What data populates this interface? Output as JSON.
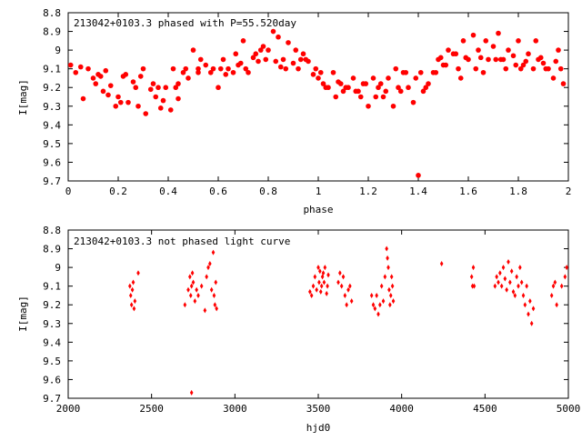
{
  "chart_data": [
    {
      "type": "scatter",
      "title": "213042+0103.3 phased with P=55.520day",
      "xlabel": "phase",
      "ylabel": "I[mag]",
      "xlim": [
        0,
        2
      ],
      "ylim": [
        9.7,
        8.8
      ],
      "y_inverted": true,
      "xticks": [
        "0",
        "0.2",
        "0.4",
        "0.6",
        "0.8",
        "1",
        "1.2",
        "1.4",
        "1.6",
        "1.8",
        "2"
      ],
      "yticks": [
        "8.8",
        "8.9",
        "9",
        "9.1",
        "9.2",
        "9.3",
        "9.4",
        "9.5",
        "9.6",
        "9.7"
      ],
      "grid": false,
      "marker_color": "#ff0000",
      "x": [
        0.01,
        0.03,
        0.06,
        0.08,
        0.1,
        0.12,
        0.14,
        0.15,
        0.17,
        0.19,
        0.2,
        0.22,
        0.24,
        0.26,
        0.28,
        0.3,
        0.31,
        0.33,
        0.35,
        0.37,
        0.39,
        0.41,
        0.42,
        0.44,
        0.46,
        0.48,
        0.5,
        0.52,
        0.55,
        0.57,
        0.6,
        0.62,
        0.64,
        0.66,
        0.68,
        0.7,
        0.72,
        0.74,
        0.76,
        0.78,
        0.8,
        0.82,
        0.84,
        0.86,
        0.88,
        0.9,
        0.92,
        0.94,
        0.96,
        0.98,
        1.0,
        1.02,
        1.04,
        1.06,
        1.08,
        1.1,
        1.12,
        1.14,
        1.16,
        1.18,
        1.2,
        1.22,
        1.24,
        1.26,
        1.28,
        1.3,
        1.32,
        1.34,
        1.36,
        1.38,
        1.4,
        1.42,
        1.44,
        1.46,
        1.48,
        1.5,
        1.52,
        1.54,
        1.56,
        1.58,
        1.6,
        1.62,
        1.64,
        1.66,
        1.68,
        1.7,
        1.72,
        1.74,
        1.76,
        1.78,
        1.8,
        1.82,
        1.84,
        1.86,
        1.88,
        1.9,
        1.92,
        1.94,
        1.96,
        1.98,
        0.05,
        0.11,
        0.16,
        0.23,
        0.27,
        0.34,
        0.38,
        0.43,
        0.47,
        0.53,
        0.58,
        0.63,
        0.67,
        0.71,
        0.75,
        0.79,
        0.83,
        0.87,
        0.91,
        0.95,
        0.99,
        1.03,
        1.07,
        1.11,
        1.15,
        1.19,
        1.23,
        1.27,
        1.31,
        1.35,
        1.39,
        1.43,
        1.47,
        1.51,
        1.55,
        1.59,
        1.63,
        1.67,
        1.71,
        1.75,
        1.79,
        1.83,
        1.87,
        1.91,
        1.95,
        0.13,
        0.21,
        0.29,
        0.36,
        0.44,
        0.52,
        0.61,
        0.69,
        0.77,
        0.85,
        0.93,
        1.01,
        1.09,
        1.17,
        1.25,
        1.33,
        1.41,
        1.49,
        1.57,
        1.65,
        1.73,
        1.81,
        1.89,
        1.97
      ],
      "y": [
        9.08,
        9.12,
        9.26,
        9.1,
        9.15,
        9.13,
        9.22,
        9.11,
        9.19,
        9.3,
        9.25,
        9.14,
        9.28,
        9.17,
        9.3,
        9.1,
        9.34,
        9.21,
        9.25,
        9.31,
        9.2,
        9.32,
        9.1,
        9.26,
        9.12,
        9.15,
        9.0,
        9.1,
        9.08,
        9.12,
        9.2,
        9.05,
        9.1,
        9.12,
        9.08,
        8.95,
        9.12,
        9.04,
        9.06,
        8.98,
        9.0,
        8.9,
        8.93,
        9.05,
        8.96,
        9.07,
        9.1,
        9.02,
        9.06,
        9.13,
        9.15,
        9.18,
        9.2,
        9.12,
        9.17,
        9.22,
        9.2,
        9.15,
        9.22,
        9.18,
        9.3,
        9.15,
        9.2,
        9.25,
        9.15,
        9.3,
        9.2,
        9.12,
        9.2,
        9.28,
        9.67,
        9.22,
        9.18,
        9.12,
        9.05,
        9.08,
        9.0,
        9.02,
        9.1,
        8.95,
        9.05,
        8.92,
        9.0,
        9.12,
        9.05,
        8.98,
        8.91,
        9.05,
        9.0,
        9.03,
        8.95,
        9.08,
        9.02,
        9.1,
        9.05,
        9.07,
        9.1,
        9.15,
        9.0,
        9.18,
        9.09,
        9.18,
        9.24,
        9.13,
        9.2,
        9.18,
        9.27,
        9.2,
        9.1,
        9.05,
        9.1,
        9.13,
        9.02,
        9.1,
        9.02,
        9.05,
        9.06,
        9.1,
        9.0,
        9.05,
        9.1,
        9.2,
        9.25,
        9.2,
        9.22,
        9.18,
        9.25,
        9.22,
        9.1,
        9.12,
        9.15,
        9.2,
        9.12,
        9.08,
        9.02,
        9.04,
        9.1,
        8.95,
        9.05,
        9.1,
        9.08,
        9.06,
        8.95,
        9.1,
        9.06,
        9.14,
        9.28,
        9.14,
        9.2,
        9.18,
        9.12,
        9.1,
        9.07,
        9.0,
        9.09,
        9.05,
        9.12,
        9.18,
        9.25,
        9.18,
        9.22,
        9.12,
        9.04,
        9.15,
        9.04,
        9.05,
        9.1,
        9.04,
        9.1
      ]
    },
    {
      "type": "scatter",
      "title": "213042+0103.3 not phased light curve",
      "xlabel": "hjd0",
      "ylabel": "I[mag]",
      "xlim": [
        2000,
        5000
      ],
      "ylim": [
        9.7,
        8.8
      ],
      "y_inverted": true,
      "xticks": [
        "2000",
        "2500",
        "3000",
        "3500",
        "4000",
        "4500",
        "5000"
      ],
      "yticks": [
        "8.8",
        "8.9",
        "9",
        "9.1",
        "9.2",
        "9.3",
        "9.4",
        "9.5",
        "9.6",
        "9.7"
      ],
      "grid": false,
      "marker_color": "#ff0000",
      "x": [
        2370,
        2375,
        2380,
        2385,
        2390,
        2395,
        2400,
        2420,
        2700,
        2720,
        2730,
        2735,
        2740,
        2745,
        2750,
        2760,
        2770,
        2780,
        2800,
        2820,
        2830,
        2840,
        2850,
        2860,
        2870,
        2875,
        2880,
        2885,
        2890,
        2740,
        3450,
        3460,
        3470,
        3480,
        3490,
        3500,
        3505,
        3510,
        3515,
        3520,
        3525,
        3530,
        3535,
        3540,
        3550,
        3555,
        3560,
        3620,
        3630,
        3640,
        3650,
        3660,
        3670,
        3680,
        3690,
        3700,
        3820,
        3830,
        3840,
        3850,
        3860,
        3870,
        3880,
        3890,
        3900,
        3910,
        3915,
        3920,
        3925,
        3930,
        3935,
        3940,
        3945,
        3950,
        4240,
        4420,
        4425,
        4430,
        4435,
        4560,
        4570,
        4580,
        4590,
        4600,
        4610,
        4620,
        4630,
        4640,
        4650,
        4660,
        4670,
        4680,
        4690,
        4700,
        4710,
        4720,
        4730,
        4740,
        4750,
        4760,
        4770,
        4780,
        4790,
        4900,
        4910,
        4920,
        4930,
        4960,
        4980,
        4990
      ],
      "y": [
        9.1,
        9.15,
        9.2,
        9.12,
        9.08,
        9.22,
        9.18,
        9.03,
        9.2,
        9.12,
        9.05,
        9.15,
        9.1,
        9.03,
        9.08,
        9.18,
        9.12,
        9.15,
        9.1,
        9.23,
        9.05,
        9.0,
        8.98,
        9.12,
        8.92,
        9.15,
        9.2,
        9.08,
        9.22,
        9.67,
        9.13,
        9.15,
        9.1,
        9.05,
        9.12,
        9.0,
        9.08,
        9.02,
        9.13,
        9.1,
        9.05,
        9.03,
        9.08,
        9.0,
        9.14,
        9.1,
        9.04,
        9.08,
        9.03,
        9.1,
        9.05,
        9.15,
        9.2,
        9.12,
        9.1,
        9.18,
        9.15,
        9.2,
        9.22,
        9.15,
        9.25,
        9.2,
        9.1,
        9.18,
        9.05,
        8.9,
        8.95,
        9.0,
        9.12,
        9.2,
        9.15,
        9.05,
        9.1,
        9.18,
        8.98,
        9.05,
        9.1,
        9.0,
        9.1,
        9.1,
        9.05,
        9.08,
        9.03,
        9.1,
        9.0,
        9.06,
        9.12,
        8.97,
        9.08,
        9.02,
        9.13,
        9.15,
        9.05,
        9.1,
        9.0,
        9.08,
        9.15,
        9.2,
        9.1,
        9.25,
        9.18,
        9.3,
        9.22,
        9.15,
        9.1,
        9.08,
        9.2,
        9.1,
        9.05,
        9.0
      ]
    }
  ]
}
